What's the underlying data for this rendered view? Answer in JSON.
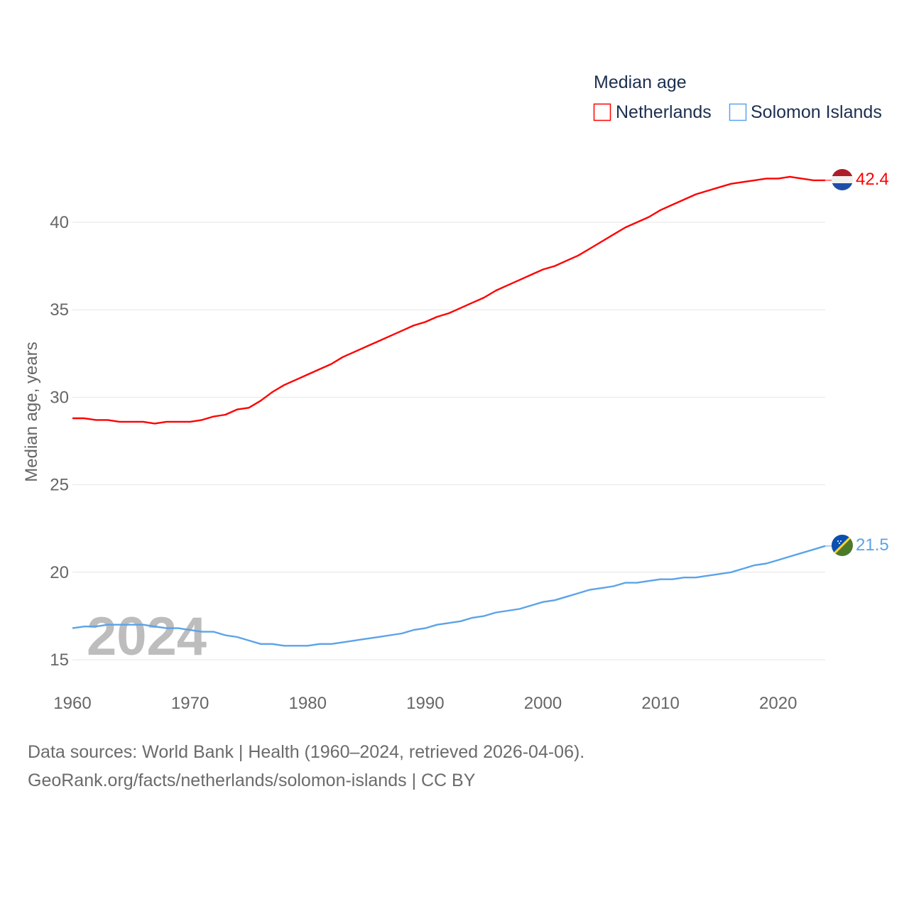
{
  "chart_data": {
    "type": "line",
    "title": "Median age",
    "xlabel": "",
    "ylabel": "Median age, years",
    "xlim": [
      1960,
      2024
    ],
    "ylim": [
      15,
      43
    ],
    "x_ticks": [
      "1960",
      "1970",
      "1980",
      "1990",
      "2000",
      "2010",
      "2020"
    ],
    "y_ticks": [
      "15",
      "20",
      "25",
      "30",
      "35",
      "40"
    ],
    "grid": true,
    "legend_placement": "top-right",
    "watermark_year": "2024",
    "x": [
      1960,
      1961,
      1962,
      1963,
      1964,
      1965,
      1966,
      1967,
      1968,
      1969,
      1970,
      1971,
      1972,
      1973,
      1974,
      1975,
      1976,
      1977,
      1978,
      1979,
      1980,
      1981,
      1982,
      1983,
      1984,
      1985,
      1986,
      1987,
      1988,
      1989,
      1990,
      1991,
      1992,
      1993,
      1994,
      1995,
      1996,
      1997,
      1998,
      1999,
      2000,
      2001,
      2002,
      2003,
      2004,
      2005,
      2006,
      2007,
      2008,
      2009,
      2010,
      2011,
      2012,
      2013,
      2014,
      2015,
      2016,
      2017,
      2018,
      2019,
      2020,
      2021,
      2022,
      2023,
      2024
    ],
    "series": [
      {
        "name": "Netherlands",
        "color": "#ff0000",
        "end_label": "42.4",
        "values": [
          28.8,
          28.8,
          28.7,
          28.7,
          28.6,
          28.6,
          28.6,
          28.5,
          28.6,
          28.6,
          28.6,
          28.7,
          28.9,
          29.0,
          29.3,
          29.4,
          29.8,
          30.3,
          30.7,
          31.0,
          31.3,
          31.6,
          31.9,
          32.3,
          32.6,
          32.9,
          33.2,
          33.5,
          33.8,
          34.1,
          34.3,
          34.6,
          34.8,
          35.1,
          35.4,
          35.7,
          36.1,
          36.4,
          36.7,
          37.0,
          37.3,
          37.5,
          37.8,
          38.1,
          38.5,
          38.9,
          39.3,
          39.7,
          40.0,
          40.3,
          40.7,
          41.0,
          41.3,
          41.6,
          41.8,
          42.0,
          42.2,
          42.3,
          42.4,
          42.5,
          42.5,
          42.6,
          42.5,
          42.4,
          42.4
        ]
      },
      {
        "name": "Solomon Islands",
        "color": "#5ba3e8",
        "end_label": "21.5",
        "values": [
          16.8,
          16.9,
          16.9,
          17.0,
          17.0,
          17.0,
          17.0,
          16.9,
          16.8,
          16.8,
          16.7,
          16.6,
          16.6,
          16.4,
          16.3,
          16.1,
          15.9,
          15.9,
          15.8,
          15.8,
          15.8,
          15.9,
          15.9,
          16.0,
          16.1,
          16.2,
          16.3,
          16.4,
          16.5,
          16.7,
          16.8,
          17.0,
          17.1,
          17.2,
          17.4,
          17.5,
          17.7,
          17.8,
          17.9,
          18.1,
          18.3,
          18.4,
          18.6,
          18.8,
          19.0,
          19.1,
          19.2,
          19.4,
          19.4,
          19.5,
          19.6,
          19.6,
          19.7,
          19.7,
          19.8,
          19.9,
          20.0,
          20.2,
          20.4,
          20.5,
          20.7,
          20.9,
          21.1,
          21.3,
          21.5
        ]
      }
    ]
  },
  "footer": {
    "line1": "Data sources: World Bank | Health (1960–2024, retrieved 2026-04-06).",
    "line2": "GeoRank.org/facts/netherlands/solomon-islands | CC BY"
  }
}
